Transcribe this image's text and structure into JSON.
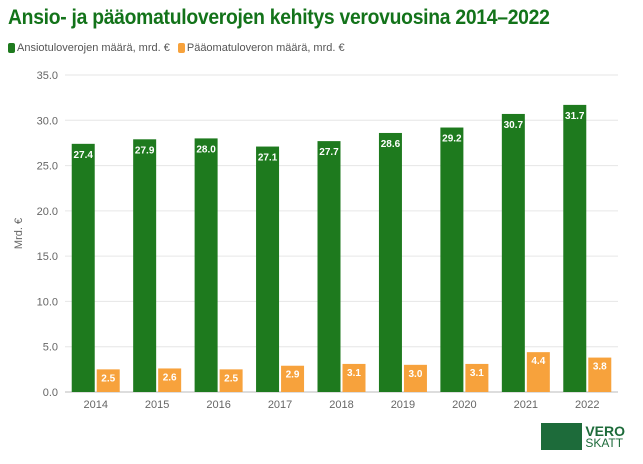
{
  "colors": {
    "series1": "#1e7a1e",
    "series2": "#f7a23c",
    "title": "#13731a"
  },
  "logo": {
    "line1": "VERO",
    "line2": "SKATT"
  },
  "chart_data": {
    "type": "bar",
    "title": "Ansio- ja pääomatuloverojen kehitys verovuosina 2014–2022",
    "xlabel": "",
    "ylabel": "Mrd. €",
    "ylim": [
      0,
      35
    ],
    "yticks": [
      "0.0",
      "5.0",
      "10.0",
      "15.0",
      "20.0",
      "25.0",
      "30.0",
      "35.0"
    ],
    "grid": true,
    "legend": "top-left",
    "categories": [
      "2014",
      "2015",
      "2016",
      "2017",
      "2018",
      "2019",
      "2020",
      "2021",
      "2022"
    ],
    "series": [
      {
        "name": "Ansiotuloverojen määrä, mrd. €",
        "values": [
          27.4,
          27.9,
          28.0,
          27.1,
          27.7,
          28.6,
          29.2,
          30.7,
          31.7
        ],
        "labels": [
          "27.4",
          "27.9",
          "28.0",
          "27.1",
          "27.7",
          "28.6",
          "29.2",
          "30.7",
          "31.7"
        ]
      },
      {
        "name": "Pääomatuloveron määrä, mrd. €",
        "values": [
          2.5,
          2.6,
          2.5,
          2.9,
          3.1,
          3.0,
          3.1,
          4.4,
          3.8
        ],
        "labels": [
          "2.5",
          "2.6",
          "2.5",
          "2.9",
          "3.1",
          "3.0",
          "3.1",
          "4.4",
          "3.8"
        ]
      }
    ]
  }
}
